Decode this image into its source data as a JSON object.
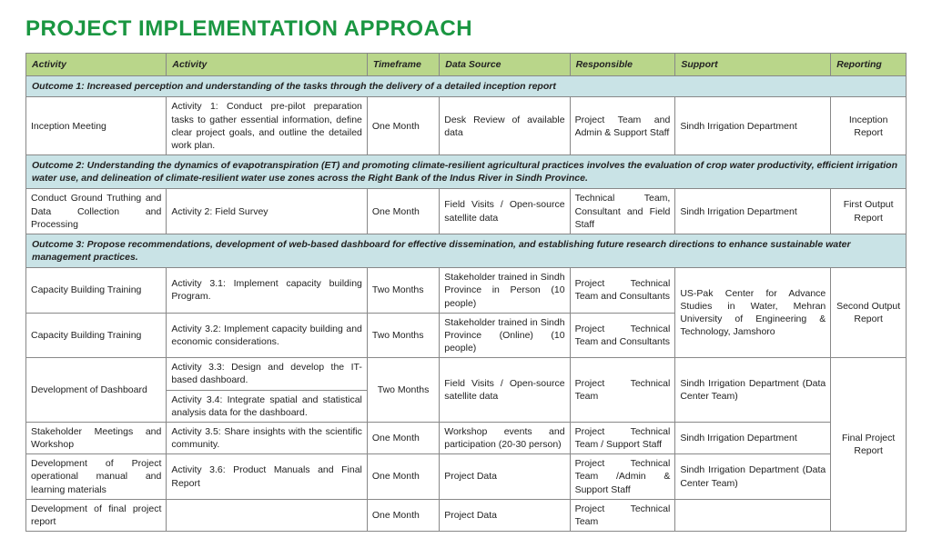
{
  "title": "PROJECT IMPLEMENTATION APPROACH",
  "headers": [
    "Activity",
    "Activity",
    "Timeframe",
    "Data Source",
    "Responsible",
    "Support",
    "Reporting"
  ],
  "outcome1": "Outcome 1:  Increased perception and understanding of the tasks through the delivery of a detailed inception report",
  "r1": {
    "a": "Inception Meeting",
    "b": "Activity 1: Conduct pre-pilot preparation tasks to gather essential information, define clear project goals, and outline the detailed work plan.",
    "c": "One Month",
    "d": "Desk Review of available data",
    "e": "Project Team and Admin & Support Staff",
    "f": "Sindh Irrigation Department",
    "g": "Inception Report"
  },
  "outcome2": "Outcome 2: Understanding the dynamics of evapotranspiration (ET) and promoting climate-resilient agricultural practices involves the evaluation of crop water productivity, efficient irrigation water use, and delineation of climate-resilient water use zones across the Right Bank of the Indus River in Sindh Province.",
  "r2": {
    "a": "Conduct Ground Truthing and Data Collection and Processing",
    "b": "Activity 2: Field Survey",
    "c": "One Month",
    "d": "Field Visits / Open-source satellite data",
    "e": "Technical Team, Consultant and Field Staff",
    "f": "Sindh Irrigation Department",
    "g": "First Output Report"
  },
  "outcome3": "Outcome 3:  Propose recommendations, development of web-based dashboard for effective dissemination, and establishing future research directions to enhance sustainable water management practices.",
  "r31": {
    "a": "Capacity Building Training",
    "b": "Activity 3.1: Implement capacity building Program.",
    "c": "Two Months",
    "d": "Stakeholder trained in Sindh Province in Person (10 people)",
    "e": "Project Technical Team and Consultants"
  },
  "r32": {
    "a": "Capacity Building Training",
    "b": "Activity 3.2: Implement capacity building and economic considerations.",
    "c": "Two Months",
    "d": "Stakeholder trained in Sindh Province (Online) (10 people)",
    "e": "Project Technical Team and Consultants"
  },
  "merged_support_31_32": "US-Pak Center for Advance Studies in Water, Mehran University of Engineering & Technology, Jamshoro",
  "merged_report_31_32": "Second Output Report",
  "r33": {
    "a": "Development of Dashboard",
    "b": "Activity 3.3: Design and develop the IT-based dashboard.",
    "d": "Field Visits / Open-source satellite data",
    "e": "Project Technical Team"
  },
  "r34b": "Activity 3.4: Integrate spatial and statistical analysis data for the dashboard.",
  "merged_tf_33_34": "Two Months",
  "merged_support_33_34": "Sindh Irrigation Department (Data Center Team)",
  "merged_report_33_37": "Final Project Report",
  "r35": {
    "a": "Stakeholder Meetings and Workshop",
    "b": "Activity 3.5: Share insights with the scientific community.",
    "c": "One Month",
    "d": "Workshop events and participation (20-30 person)",
    "e": "Project Technical Team / Support Staff",
    "f": "Sindh Irrigation Department"
  },
  "r36": {
    "a": "Development of Project operational manual and learning materials",
    "b": "Activity 3.6: Product Manuals and Final Report",
    "c": "One Month",
    "d": "Project Data",
    "e": "Project Technical Team /Admin & Support Staff",
    "f": "Sindh Irrigation Department (Data Center Team)"
  },
  "r37": {
    "a": "Development of final project report",
    "b": "",
    "c": "One Month",
    "d": "Project Data",
    "e": "Project Technical Team",
    "f": ""
  }
}
